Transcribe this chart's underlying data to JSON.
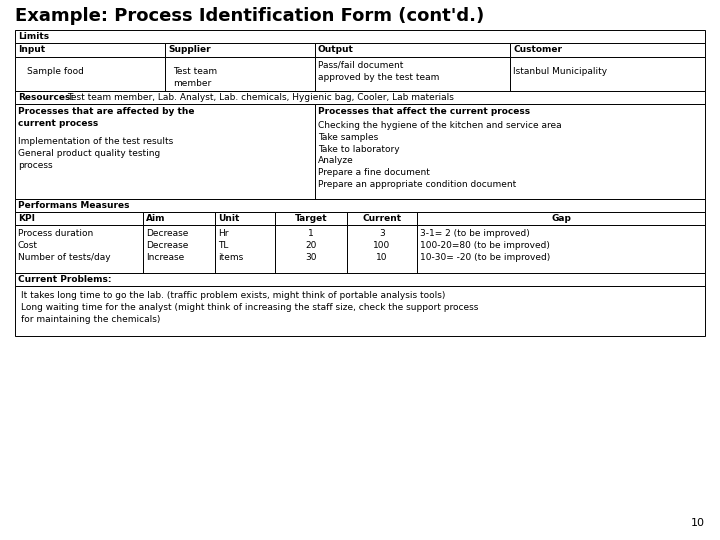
{
  "title": "Example: Process Identification Form (cont'd.)",
  "bg_color": "#ffffff",
  "page_number": "10",
  "sections": {
    "limits_header": "Limits",
    "input_label": "Input",
    "supplier_label": "Supplier",
    "output_label": "Output",
    "customer_label": "Customer",
    "input_value": "Sample food",
    "supplier_value": "Test team\nmember",
    "output_value": "Pass/fail document\napproved by the test team",
    "customer_value": "Istanbul Municipality",
    "resources_label": "Resources:",
    "resources_value": "Test team member, Lab. Analyst, Lab. chemicals, Hygienic bag, Cooler, Lab materials",
    "affected_header": "Processes that are affected by the\ncurrent process",
    "affected_items": "Implementation of the test results\nGeneral product quality testing\nprocess",
    "affect_header": "Processes that affect the current process",
    "affect_items": "Checking the hygiene of the kitchen and service area\nTake samples\nTake to laboratory\nAnalyze\nPrepare a fine document\nPrepare an appropriate condition document",
    "performans_header": "Performans Measures",
    "kpi_label": "KPI",
    "aim_label": "Aim",
    "unit_label": "Unit",
    "target_label": "Target",
    "current_label": "Current",
    "gap_label": "Gap",
    "kpi_items": "Process duration\nCost\nNumber of tests/day",
    "aim_items": "Decrease\nDecrease\nIncrease",
    "unit_items": "Hr\nTL\nitems",
    "target_items": "1\n20\n30",
    "current_items": "3\n100\n10",
    "gap_items": "3-1= 2 (to be improved)\n100-20=80 (to be improved)\n10-30= -20 (to be improved)",
    "problems_header": "Current Problems:",
    "problems_text": "It takes long time to go the lab. (traffic problem exists, might think of portable analysis tools)\nLong waiting time for the analyst (might think of increasing the staff size, check the support process\nfor maintaining the chemicals)"
  }
}
